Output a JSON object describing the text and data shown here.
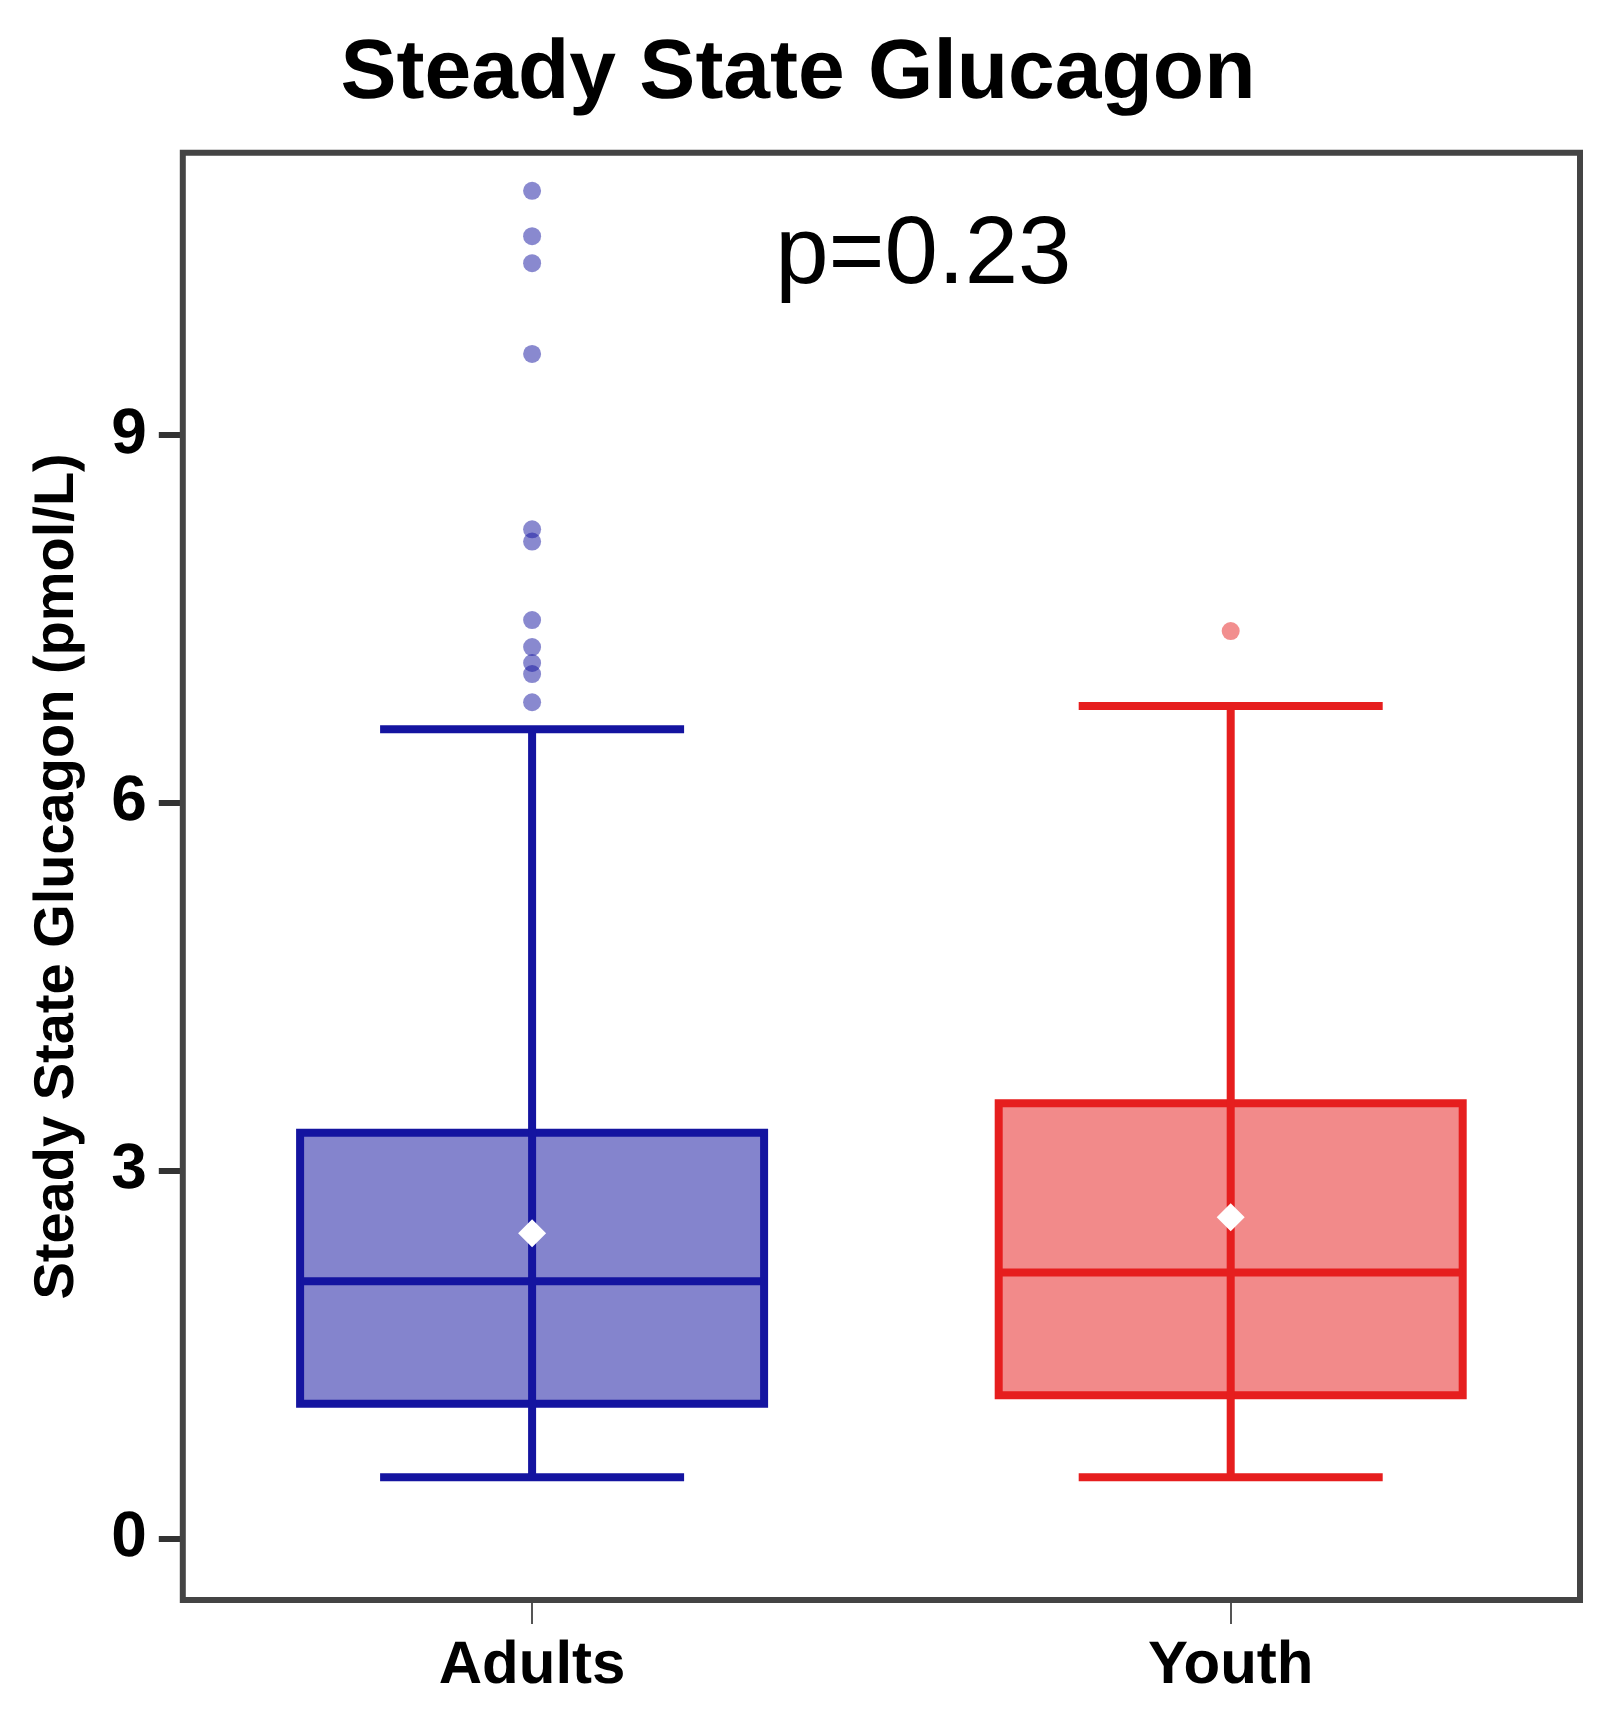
{
  "chart_data": {
    "type": "box",
    "title": "Steady State Glucagon",
    "ylabel": "Steady State Glucagon (pmol/L)",
    "categories": [
      "Adults",
      "Youth"
    ],
    "colors": [
      "#1414a0",
      "#e61e1e"
    ],
    "boxes": [
      {
        "low": 0.5,
        "q1": 1.1,
        "median": 2.1,
        "q3": 3.31,
        "high": 6.6,
        "mean": 2.49,
        "outliers": [
          6.82,
          7.05,
          7.14,
          7.27,
          7.49,
          8.13,
          8.23,
          9.66,
          10.4,
          10.62,
          10.99
        ]
      },
      {
        "low": 0.5,
        "q1": 1.17,
        "median": 2.17,
        "q3": 3.55,
        "high": 6.79,
        "mean": 2.62,
        "outliers": [
          7.4
        ]
      }
    ],
    "ylim": [
      -0.5,
      11.3
    ],
    "yticks": [
      0,
      3,
      6,
      9
    ],
    "annotations": [
      "p=0.23"
    ],
    "grid": false,
    "legend": false
  }
}
